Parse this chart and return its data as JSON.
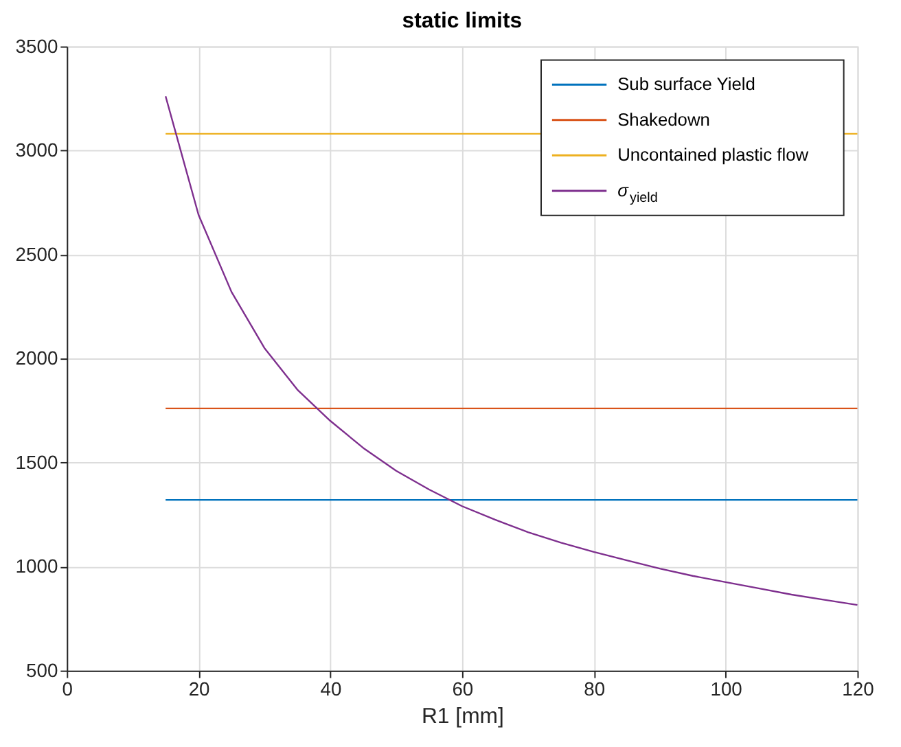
{
  "chart_data": {
    "type": "line",
    "title": "static limits",
    "xlabel": "R1 [mm]",
    "xlim": [
      0,
      120
    ],
    "xticks": [
      0,
      20,
      40,
      60,
      80,
      100,
      120
    ],
    "ylim": [
      500,
      3500
    ],
    "yticks": [
      500,
      1000,
      1500,
      2000,
      2500,
      3000,
      3500
    ],
    "grid": true,
    "legend": "top right",
    "line_style": "solid",
    "marker": "none",
    "series": [
      {
        "name": "Sub surface Yield",
        "color": "#0072bd",
        "x": [
          15,
          120
        ],
        "values": [
          1320,
          1320
        ]
      },
      {
        "name": "Shakedown",
        "color": "#d95319",
        "x": [
          15,
          120
        ],
        "values": [
          1760,
          1760
        ]
      },
      {
        "name": "Uncontained plastic flow",
        "color": "#edb120",
        "x": [
          15,
          120
        ],
        "values": [
          3080,
          3080
        ]
      },
      {
        "name": "σ$_{yield}$",
        "color": "#7e2f8e",
        "x": [
          15,
          20,
          25,
          30,
          35,
          40,
          45,
          50,
          55,
          60,
          65,
          70,
          75,
          80,
          85,
          90,
          95,
          100,
          105,
          110,
          115,
          120
        ],
        "values": [
          3260,
          2690,
          2320,
          2050,
          1850,
          1700,
          1570,
          1460,
          1370,
          1290,
          1225,
          1165,
          1115,
          1070,
          1030,
          990,
          955,
          925,
          895,
          865,
          840,
          815
        ]
      }
    ]
  }
}
